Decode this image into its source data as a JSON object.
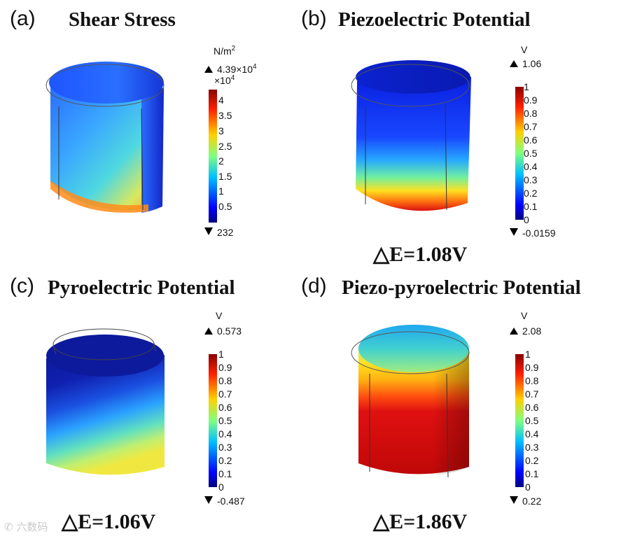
{
  "figure": {
    "panels": [
      {
        "label": "(a)",
        "title": "Shear Stress",
        "delta": "",
        "colorbar": {
          "unit": "N/m",
          "unit_sup": "2",
          "max_value": "4.39×10",
          "max_sup": "4",
          "multiplier": "×10",
          "multiplier_sup": "4",
          "ticks": [
            "4",
            "3.5",
            "3",
            "2.5",
            "2",
            "1.5",
            "1",
            "0.5"
          ],
          "min_value": "232"
        }
      },
      {
        "label": "(b)",
        "title": "Piezoelectric Potential",
        "delta": "△E=1.08V",
        "colorbar": {
          "unit": "V",
          "max_value": "1.06",
          "ticks": [
            "1",
            "0.9",
            "0.8",
            "0.7",
            "0.6",
            "0.5",
            "0.4",
            "0.3",
            "0.2",
            "0.1",
            "0"
          ],
          "min_value": "-0.0159"
        }
      },
      {
        "label": "(c)",
        "title": "Pyroelectric Potential",
        "delta": "△E=1.06V",
        "colorbar": {
          "unit": "V",
          "max_value": "0.573",
          "ticks": [
            "1",
            "0.9",
            "0.8",
            "0.7",
            "0.6",
            "0.5",
            "0.4",
            "0.3",
            "0.2",
            "0.1",
            "0"
          ],
          "min_value": "-0.487"
        }
      },
      {
        "label": "(d)",
        "title": "Piezo-pyroelectric Potential",
        "delta": "△E=1.86V",
        "colorbar": {
          "unit": "V",
          "max_value": "2.08",
          "ticks": [
            "1",
            "0.9",
            "0.8",
            "0.7",
            "0.6",
            "0.5",
            "0.4",
            "0.3",
            "0.2",
            "0.1",
            "0"
          ],
          "min_value": "0.22"
        }
      }
    ],
    "colormap": [
      "#00007f",
      "#0000ff",
      "#0080ff",
      "#00ffff",
      "#80ff80",
      "#ffff00",
      "#ff8000",
      "#ff0000",
      "#7f0000"
    ],
    "watermark": "六数码"
  }
}
